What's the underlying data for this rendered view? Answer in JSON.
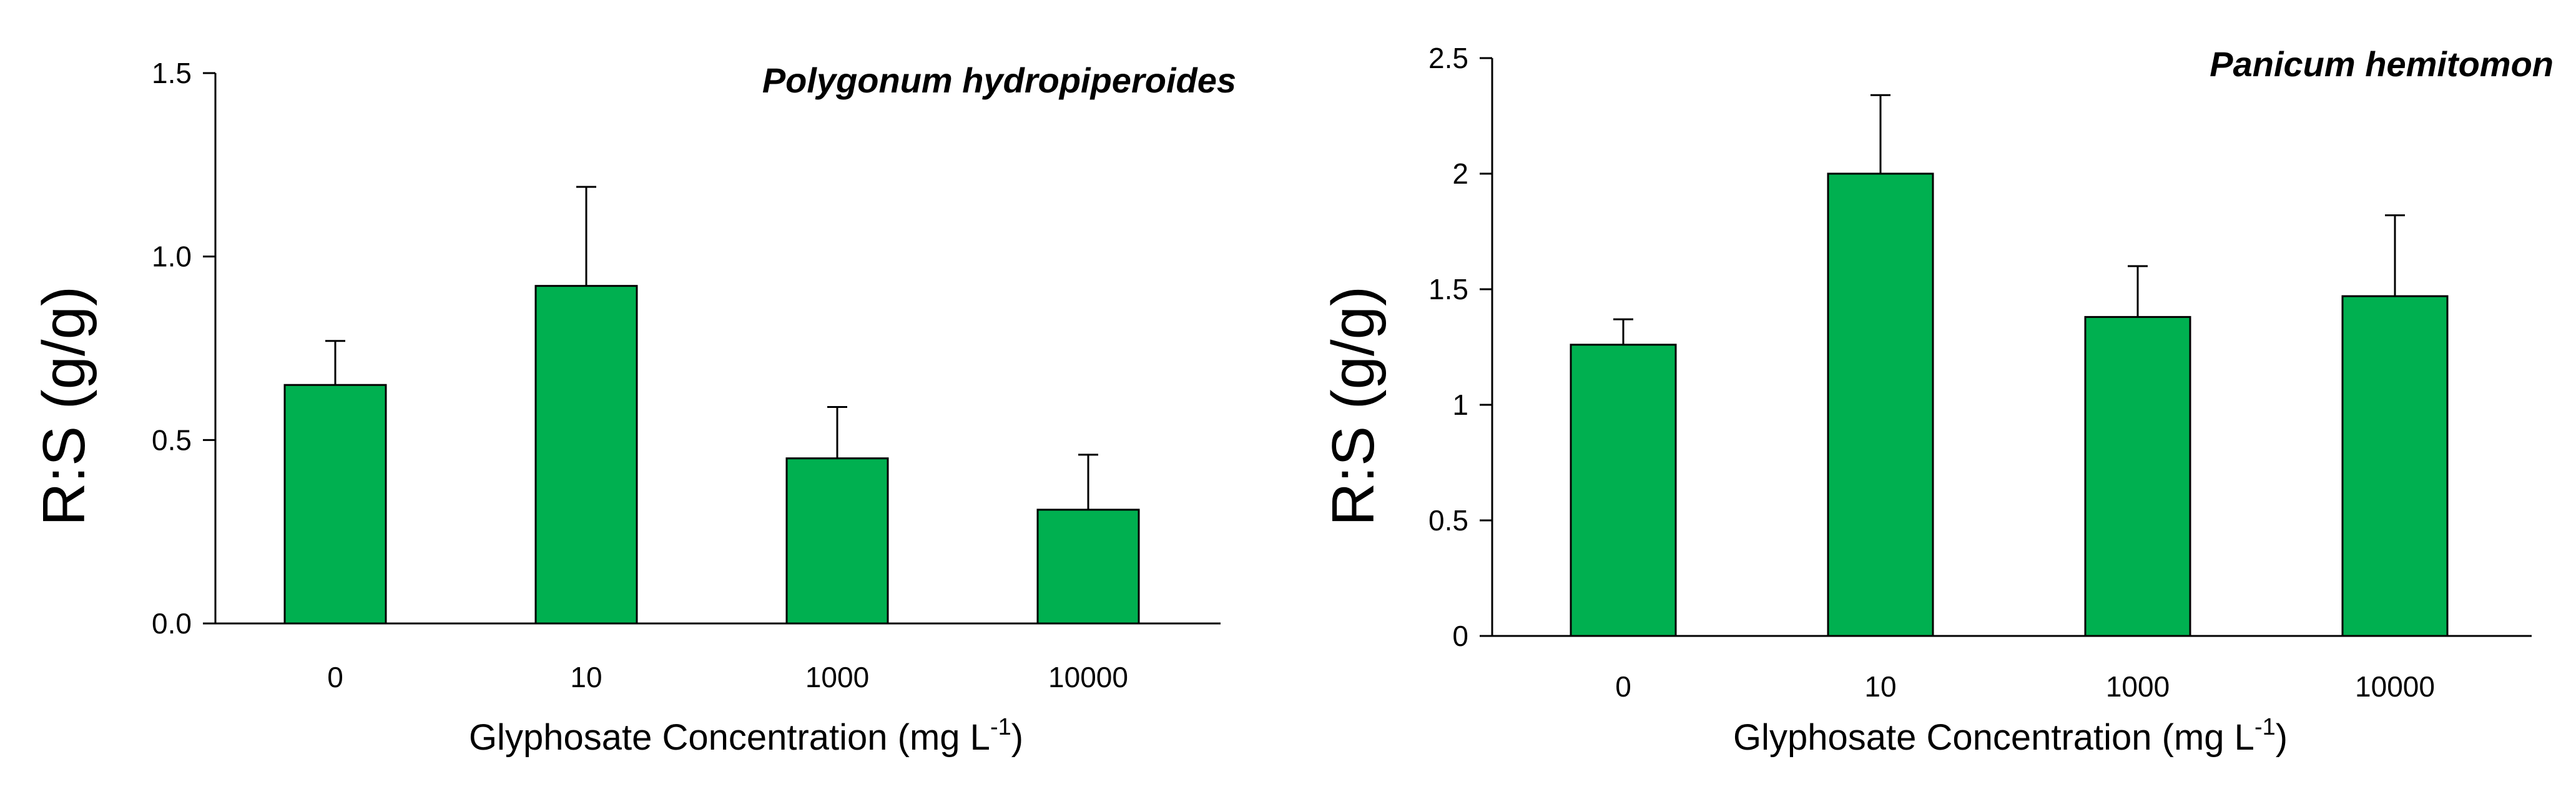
{
  "chart_data": [
    {
      "type": "bar",
      "title": "Polygonum hydropiperoides",
      "xlabel": "Glyphosate Concentration (mg L",
      "xlabel_sup": "-1",
      "xlabel_suffix": ")",
      "ylabel": "R:S (g/g)",
      "categories": [
        "0",
        "10",
        "1000",
        "10000"
      ],
      "values": [
        0.65,
        0.92,
        0.45,
        0.31
      ],
      "errors": [
        0.12,
        0.27,
        0.14,
        0.15
      ],
      "ylim": [
        0,
        1.5
      ],
      "yticks": [
        0,
        0.5,
        1.0,
        1.5
      ],
      "ytick_labels": [
        "0.0",
        "0.5",
        "1.0",
        "1.5"
      ],
      "bar_color": "#00b050"
    },
    {
      "type": "bar",
      "title": "Panicum hemitomon",
      "xlabel": "Glyphosate Concentration (mg L",
      "xlabel_sup": "-1",
      "xlabel_suffix": ")",
      "ylabel": "R:S (g/g)",
      "categories": [
        "0",
        "10",
        "1000",
        "10000"
      ],
      "values": [
        1.26,
        2.0,
        1.38,
        1.47
      ],
      "errors": [
        0.11,
        0.34,
        0.22,
        0.35
      ],
      "ylim": [
        0,
        2.5
      ],
      "yticks": [
        0,
        0.5,
        1,
        1.5,
        2,
        2.5
      ],
      "ytick_labels": [
        "0",
        "0.5",
        "1",
        "1.5",
        "2",
        "2.5"
      ],
      "bar_color": "#00b050"
    }
  ]
}
